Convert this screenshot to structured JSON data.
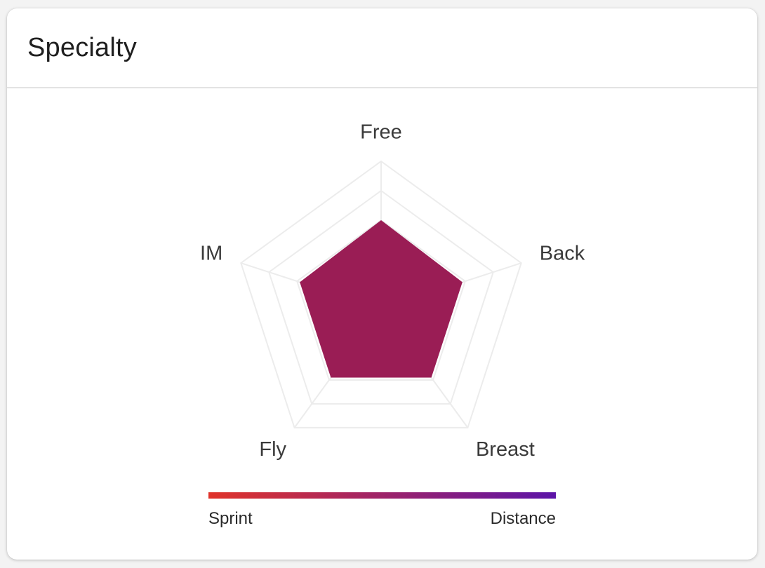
{
  "card": {
    "title": "Specialty"
  },
  "colors": {
    "fill": "#9a1d55",
    "grid": "#ececec",
    "gradient_start": "#e0332a",
    "gradient_end": "#5c14a8"
  },
  "chart_data": {
    "type": "radar",
    "axes": [
      "Free",
      "Back",
      "Breast",
      "Fly",
      "IM"
    ],
    "values": [
      0.6,
      0.58,
      0.58,
      0.58,
      0.58
    ],
    "grid_levels": [
      0.6,
      0.8,
      1.0
    ],
    "max": 1.0,
    "legend": {
      "left_label": "Sprint",
      "right_label": "Distance"
    }
  }
}
